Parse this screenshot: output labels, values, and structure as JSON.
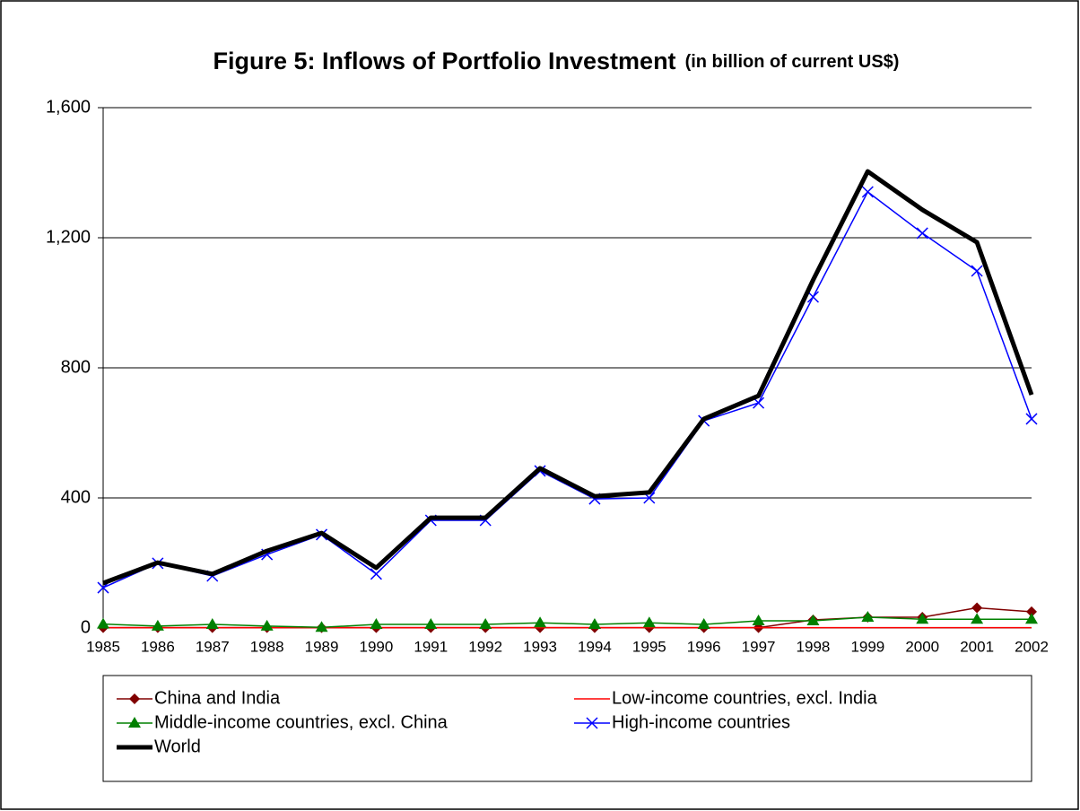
{
  "chart_data": {
    "type": "line",
    "title": "Figure 5: Inflows of Portfolio Investment",
    "subtitle": "(in billion of current US$)",
    "categories": [
      "1985",
      "1986",
      "1987",
      "1988",
      "1989",
      "1990",
      "1991",
      "1992",
      "1993",
      "1994",
      "1995",
      "1996",
      "1997",
      "1998",
      "1999",
      "2000",
      "2001",
      "2002"
    ],
    "series": [
      {
        "name": "China and India",
        "color": "#800000",
        "marker": "diamond",
        "line_width": 1.5,
        "values": [
          1,
          1,
          1,
          1,
          1,
          1,
          1,
          1,
          1,
          1,
          1,
          1,
          1,
          25,
          33,
          33,
          62,
          50
        ]
      },
      {
        "name": "Low-income countries, excl. India",
        "color": "#ff0000",
        "marker": "none",
        "line_width": 1.5,
        "values": [
          1,
          1,
          1,
          1,
          1,
          1,
          1,
          1,
          1,
          1,
          1,
          1,
          1,
          1,
          1,
          1,
          1,
          1
        ]
      },
      {
        "name": "Middle-income countries, excl. China",
        "color": "#008000",
        "marker": "triangle",
        "line_width": 1.5,
        "values": [
          12,
          6,
          11,
          6,
          2,
          11,
          11,
          11,
          16,
          11,
          16,
          11,
          22,
          22,
          33,
          27,
          27,
          27
        ]
      },
      {
        "name": "High-income countries",
        "color": "#0000ff",
        "marker": "x",
        "line_width": 1.5,
        "values": [
          124,
          199,
          160,
          226,
          287,
          166,
          331,
          331,
          483,
          397,
          400,
          637,
          692,
          1018,
          1341,
          1214,
          1098,
          643
        ]
      },
      {
        "name": "World",
        "color": "#000000",
        "marker": "none",
        "line_width": 5,
        "values": [
          138,
          201,
          166,
          237,
          292,
          185,
          339,
          339,
          491,
          405,
          417,
          643,
          714,
          1070,
          1404,
          1286,
          1186,
          717
        ]
      }
    ],
    "ylim": [
      0,
      1600
    ],
    "yticks": [
      0,
      400,
      800,
      {
        "value": 1200,
        "label": "1,200"
      },
      {
        "value": 1600,
        "label": "1,600"
      }
    ],
    "grid": true,
    "legend": "bottom"
  }
}
